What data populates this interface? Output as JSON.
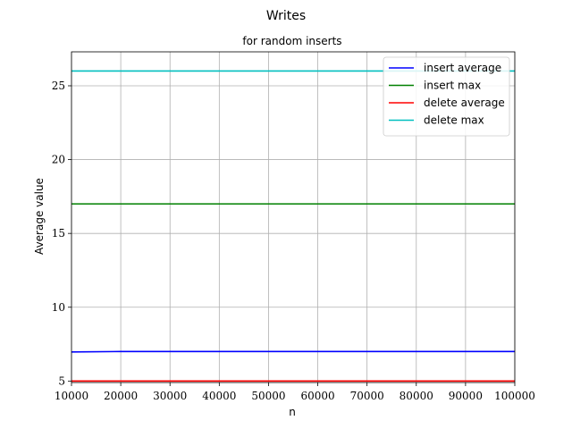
{
  "chart_data": {
    "type": "line",
    "title": "Writes",
    "subtitle": "for random inserts",
    "xlabel": "n",
    "ylabel": "Average value",
    "xlim": [
      10000,
      100000
    ],
    "ylim": [
      4.9,
      27.3
    ],
    "xticks": [
      10000,
      20000,
      30000,
      40000,
      50000,
      60000,
      70000,
      80000,
      90000,
      100000
    ],
    "yticks": [
      5,
      10,
      15,
      20,
      25
    ],
    "grid": true,
    "legend_position": "top-right",
    "x": [
      10000,
      20000,
      30000,
      40000,
      50000,
      60000,
      70000,
      80000,
      90000,
      100000
    ],
    "series": [
      {
        "name": "insert average",
        "color": "#0000ff",
        "values": [
          6.97,
          7.0,
          7.0,
          7.0,
          7.0,
          7.0,
          7.0,
          7.0,
          7.0,
          7.0
        ]
      },
      {
        "name": "insert max",
        "color": "#008000",
        "values": [
          17,
          17,
          17,
          17,
          17,
          17,
          17,
          17,
          17,
          17
        ]
      },
      {
        "name": "delete average",
        "color": "#ff0000",
        "values": [
          5,
          5,
          5,
          5,
          5,
          5,
          5,
          5,
          5,
          5
        ]
      },
      {
        "name": "delete max",
        "color": "#00bfbf",
        "values": [
          26,
          26,
          26,
          26,
          26,
          26,
          26,
          26,
          26,
          26
        ]
      }
    ]
  }
}
